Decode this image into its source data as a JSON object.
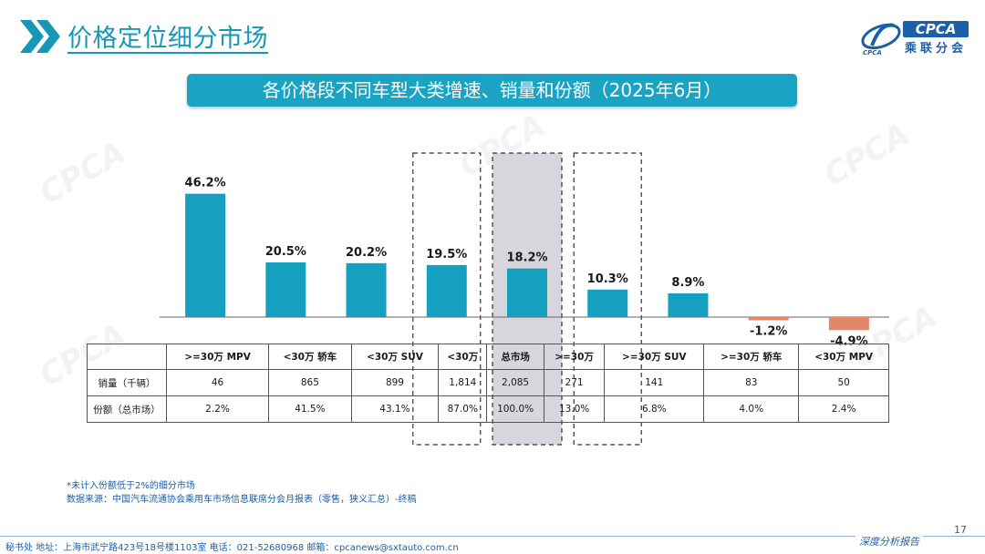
{
  "header": {
    "title": "价格定位细分市场",
    "logo_text": "CPCA",
    "logo_org": "乘联分会",
    "logo_sub": "CPCA"
  },
  "banner": {
    "text": "各价格段不同车型大类增速、销量和份额（2025年6月）"
  },
  "chart_data": {
    "type": "bar",
    "title": "各价格段不同车型大类增速、销量和份额（2025年6月）",
    "categories": [
      ">=30万 MPV",
      "<30万 轿车",
      "<30万 SUV",
      "<30万",
      "总市场",
      ">=30万",
      ">=30万 SUV",
      ">=30万 轿车",
      "<30万 MPV"
    ],
    "values": [
      46.2,
      20.5,
      20.2,
      19.5,
      18.2,
      10.3,
      8.9,
      -1.2,
      -4.9
    ],
    "value_labels": [
      "46.2%",
      "20.5%",
      "20.2%",
      "19.5%",
      "18.2%",
      "10.3%",
      "8.9%",
      "-1.2%",
      "-4.9%"
    ],
    "positive_color": "#15a0c0",
    "negative_color": "#e0876c",
    "highlight_color": "#d6d6dc",
    "dashed_boxes": [
      "<30万",
      ">=30万"
    ],
    "shaded_box": "总市场",
    "grid": false,
    "legend": "none"
  },
  "table": {
    "rows": [
      {
        "label": "销量（千辆）",
        "values": [
          "46",
          "865",
          "899",
          "1,814",
          "2,085",
          "271",
          "141",
          "83",
          "50"
        ]
      },
      {
        "label": "份额（总市场）",
        "values": [
          "2.2%",
          "41.5%",
          "43.1%",
          "87.0%",
          "100.0%",
          "13.0%",
          "6.8%",
          "4.0%",
          "2.4%"
        ]
      }
    ]
  },
  "footnote": {
    "line1": "*未计入份额低于2%的细分市场",
    "line2": "数据来源：中国汽车流通协会乘用车市场信息联席分会月报表（零售，狭义汇总）-终稿"
  },
  "footer": {
    "address": "秘书处  地址：上海市武宁路423号18号楼1103室  电话：021-52680968  邮箱：cpcanews@sxtauto.com.cn",
    "report_tag": "深度分析报告",
    "page_number": "17"
  }
}
